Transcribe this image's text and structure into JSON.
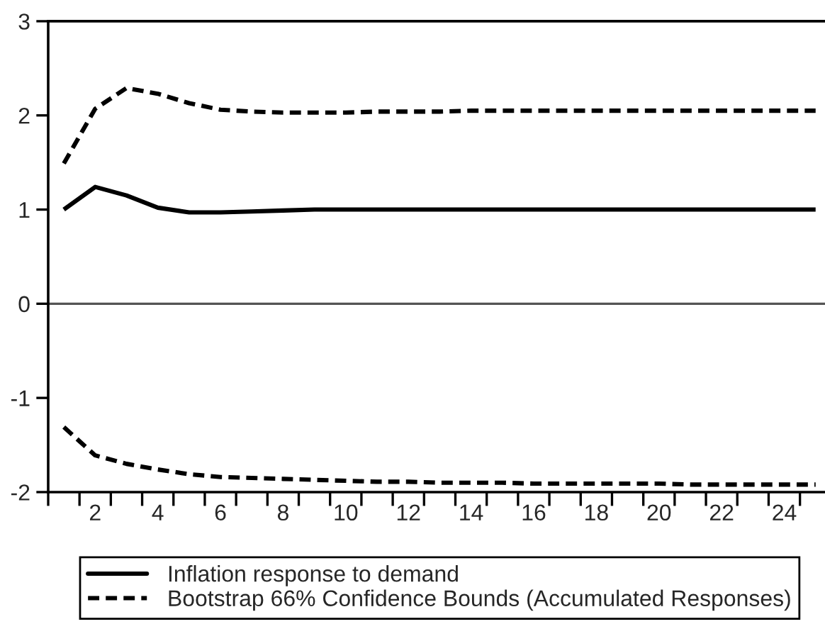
{
  "chart_data": {
    "type": "line",
    "x": [
      1,
      2,
      3,
      4,
      5,
      6,
      7,
      8,
      9,
      10,
      11,
      12,
      13,
      14,
      15,
      16,
      17,
      18,
      19,
      20,
      21,
      22,
      23,
      24,
      25
    ],
    "series": [
      {
        "name": "Inflation response to demand",
        "color": "#000000",
        "line_style": "solid",
        "values": [
          1.0,
          1.24,
          1.15,
          1.02,
          0.97,
          0.97,
          0.98,
          0.99,
          1.0,
          1.0,
          1.0,
          1.0,
          1.0,
          1.0,
          1.0,
          1.0,
          1.0,
          1.0,
          1.0,
          1.0,
          1.0,
          1.0,
          1.0,
          1.0,
          1.0
        ]
      },
      {
        "name": "Bootstrap 66% Confidence Bounds (Accumulated Responses)",
        "color": "#000000",
        "line_style": "dashed",
        "values": [
          1.49,
          2.07,
          2.29,
          2.23,
          2.13,
          2.06,
          2.04,
          2.03,
          2.03,
          2.03,
          2.04,
          2.04,
          2.04,
          2.05,
          2.05,
          2.05,
          2.05,
          2.05,
          2.05,
          2.05,
          2.05,
          2.05,
          2.05,
          2.05,
          2.05
        ]
      },
      {
        "color": "#000000",
        "line_style": "dashed",
        "values": [
          -1.31,
          -1.61,
          -1.7,
          -1.76,
          -1.81,
          -1.84,
          -1.85,
          -1.86,
          -1.87,
          -1.88,
          -1.89,
          -1.89,
          -1.9,
          -1.9,
          -1.9,
          -1.91,
          -1.91,
          -1.91,
          -1.91,
          -1.91,
          -1.92,
          -1.92,
          -1.92,
          -1.92,
          -1.92
        ]
      }
    ],
    "xlim": [
      0.5,
      25.3
    ],
    "xticks": [
      {
        "value": 0.5,
        "label": null
      },
      {
        "value": 1.5,
        "label": null
      },
      2,
      {
        "value": 2.5,
        "label": null
      },
      {
        "value": 3.5,
        "label": null
      },
      4,
      {
        "value": 4.5,
        "label": null
      },
      {
        "value": 5.5,
        "label": null
      },
      6,
      {
        "value": 6.5,
        "label": null
      },
      {
        "value": 7.5,
        "label": null
      },
      8,
      {
        "value": 8.5,
        "label": null
      },
      {
        "value": 9.5,
        "label": null
      },
      10,
      {
        "value": 10.5,
        "label": null
      },
      {
        "value": 11.5,
        "label": null
      },
      12,
      {
        "value": 12.5,
        "label": null
      },
      {
        "value": 13.5,
        "label": null
      },
      14,
      {
        "value": 14.5,
        "label": null
      },
      {
        "value": 15.5,
        "label": null
      },
      16,
      {
        "value": 16.5,
        "label": null
      },
      {
        "value": 17.5,
        "label": null
      },
      18,
      {
        "value": 18.5,
        "label": null
      },
      {
        "value": 19.5,
        "label": null
      },
      20,
      {
        "value": 20.5,
        "label": null
      },
      {
        "value": 21.5,
        "label": null
      },
      22,
      {
        "value": 22.5,
        "label": null
      },
      {
        "value": 23.5,
        "label": null
      },
      24,
      {
        "value": 24.5,
        "label": null
      }
    ],
    "ylim": [
      -2,
      3
    ],
    "yticks": [
      -2,
      -1,
      0,
      1,
      2,
      3
    ],
    "ref_lines": [
      {
        "axis": "y",
        "value": 0,
        "color": "#555555"
      }
    ],
    "legend": "bottom"
  }
}
